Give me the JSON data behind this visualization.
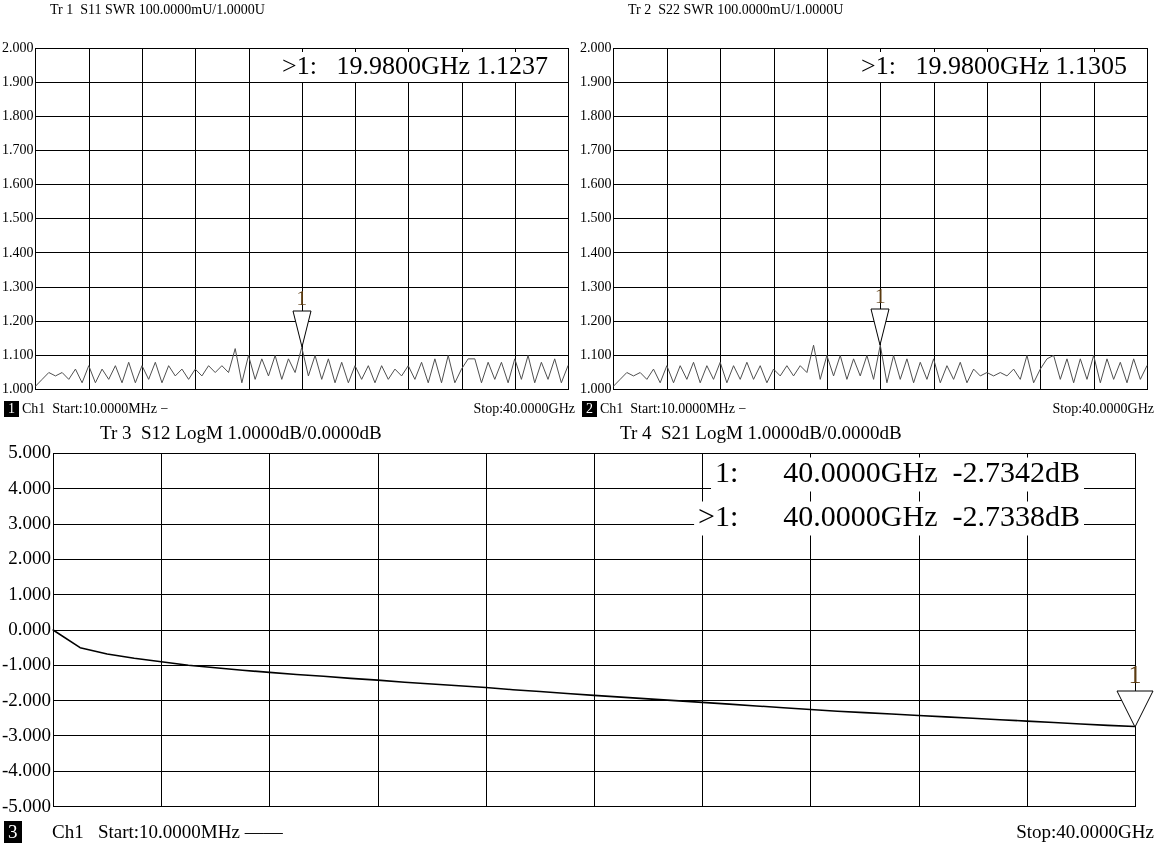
{
  "chart_data": [
    {
      "type": "line",
      "title": "Tr 1  S11 SWR 100.0000mU/1.0000U",
      "ylim": [
        1,
        2
      ],
      "yticks": [
        {
          "value": 1,
          "label": "1.000"
        },
        {
          "value": 1.1,
          "label": "1.100"
        },
        {
          "value": 1.2,
          "label": "1.200"
        },
        {
          "value": 1.3,
          "label": "1.300"
        },
        {
          "value": 1.4,
          "label": "1.400"
        },
        {
          "value": 1.5,
          "label": "1.500"
        },
        {
          "value": 1.6,
          "label": "1.600"
        },
        {
          "value": 1.7,
          "label": "1.700"
        },
        {
          "value": 1.8,
          "label": "1.800"
        },
        {
          "value": 1.9,
          "label": "1.900"
        },
        {
          "value": 2,
          "label": "2.000"
        }
      ],
      "tick_labels": "y",
      "grid": true,
      "marker": "none",
      "line_style": "solid",
      "categories": [
        null,
        null,
        null,
        null,
        null,
        null,
        null,
        null,
        null,
        null,
        null,
        null,
        null,
        null,
        null,
        null,
        null,
        null,
        null,
        null,
        null,
        null,
        null,
        null,
        null,
        null,
        null,
        null,
        null,
        null,
        null,
        null,
        null,
        null,
        null,
        null,
        null,
        null,
        null,
        null,
        null,
        null,
        null,
        null,
        null,
        null,
        null,
        null,
        null,
        null,
        null,
        null,
        null,
        null,
        null,
        null,
        null,
        null,
        null,
        null,
        null,
        null,
        null,
        null,
        null,
        null,
        null,
        null,
        null,
        null,
        null,
        null,
        null,
        null,
        null,
        null,
        null,
        null,
        null,
        null,
        null
      ],
      "series": [
        {
          "color": "#505050",
          "values": [
            1.01,
            1.03,
            1.05,
            1.04,
            1.05,
            1.03,
            1.06,
            1.02,
            1.07,
            1.02,
            1.06,
            1.03,
            1.07,
            1.02,
            1.08,
            1.02,
            1.07,
            1.03,
            1.08,
            1.02,
            1.07,
            1.04,
            1.06,
            1.03,
            1.06,
            1.04,
            1.07,
            1.05,
            1.07,
            1.05,
            1.12,
            1.02,
            1.1,
            1.03,
            1.09,
            1.04,
            1.1,
            1.03,
            1.09,
            1.05,
            1.1237,
            1.04,
            1.1,
            1.03,
            1.09,
            1.02,
            1.08,
            1.02,
            1.07,
            1.03,
            1.07,
            1.02,
            1.07,
            1.03,
            1.06,
            1.04,
            1.07,
            1.03,
            1.08,
            1.02,
            1.09,
            1.02,
            1.1,
            1.02,
            1.06,
            1.09,
            1.09,
            1.02,
            1.08,
            1.03,
            1.08,
            1.02,
            1.09,
            1.03,
            1.1,
            1.02,
            1.08,
            1.03,
            1.09,
            1.02,
            1.07
          ]
        }
      ],
      "annotations": [
        {
          "text": "1",
          "y": 1.1237
        },
        ">1:   19.9800GHz 1.1237",
        "1",
        "Ch1  Start:10.0000MHz −",
        "Stop:40.0000GHz"
      ]
    },
    {
      "type": "line",
      "title": "Tr 2  S22 SWR 100.0000mU/1.0000U",
      "ylim": [
        1,
        2
      ],
      "yticks": [
        {
          "value": 1,
          "label": "1.000"
        },
        {
          "value": 1.1,
          "label": "1.100"
        },
        {
          "value": 1.2,
          "label": "1.200"
        },
        {
          "value": 1.3,
          "label": "1.300"
        },
        {
          "value": 1.4,
          "label": "1.400"
        },
        {
          "value": 1.5,
          "label": "1.500"
        },
        {
          "value": 1.6,
          "label": "1.600"
        },
        {
          "value": 1.7,
          "label": "1.700"
        },
        {
          "value": 1.8,
          "label": "1.800"
        },
        {
          "value": 1.9,
          "label": "1.900"
        },
        {
          "value": 2,
          "label": "2.000"
        }
      ],
      "tick_labels": "y",
      "grid": true,
      "marker": "none",
      "line_style": "solid",
      "categories": [
        null,
        null,
        null,
        null,
        null,
        null,
        null,
        null,
        null,
        null,
        null,
        null,
        null,
        null,
        null,
        null,
        null,
        null,
        null,
        null,
        null,
        null,
        null,
        null,
        null,
        null,
        null,
        null,
        null,
        null,
        null,
        null,
        null,
        null,
        null,
        null,
        null,
        null,
        null,
        null,
        null,
        null,
        null,
        null,
        null,
        null,
        null,
        null,
        null,
        null,
        null,
        null,
        null,
        null,
        null,
        null,
        null,
        null,
        null,
        null,
        null,
        null,
        null,
        null,
        null,
        null,
        null,
        null,
        null,
        null,
        null,
        null,
        null,
        null,
        null,
        null,
        null,
        null,
        null,
        null,
        null
      ],
      "series": [
        {
          "color": "#505050",
          "values": [
            1.01,
            1.03,
            1.05,
            1.04,
            1.05,
            1.03,
            1.06,
            1.02,
            1.07,
            1.02,
            1.07,
            1.03,
            1.08,
            1.02,
            1.07,
            1.03,
            1.08,
            1.02,
            1.07,
            1.03,
            1.08,
            1.03,
            1.07,
            1.02,
            1.06,
            1.04,
            1.07,
            1.04,
            1.07,
            1.05,
            1.13,
            1.03,
            1.1,
            1.04,
            1.1,
            1.03,
            1.09,
            1.04,
            1.1,
            1.03,
            1.1305,
            1.02,
            1.1,
            1.03,
            1.09,
            1.02,
            1.08,
            1.03,
            1.09,
            1.02,
            1.07,
            1.03,
            1.08,
            1.02,
            1.06,
            1.04,
            1.05,
            1.04,
            1.05,
            1.04,
            1.06,
            1.03,
            1.1,
            1.02,
            1.06,
            1.09,
            1.1,
            1.03,
            1.09,
            1.02,
            1.09,
            1.03,
            1.1,
            1.02,
            1.09,
            1.03,
            1.08,
            1.02,
            1.09,
            1.03,
            1.07
          ]
        }
      ],
      "annotations": [
        {
          "text": "1",
          "y": 1.1305
        },
        ">1:   19.9800GHz 1.1305",
        "2",
        "Ch1  Start:10.0000MHz −",
        "Stop:40.0000GHz"
      ]
    },
    {
      "type": "line",
      "title": "Tr 3  S12 LogM 1.0000dB/0.0000dB",
      "subtitle": "Tr 4  S21 LogM 1.0000dB/0.0000dB",
      "ylim": [
        -5,
        5
      ],
      "yticks": [
        {
          "value": -5,
          "label": "-5.000"
        },
        {
          "value": -4,
          "label": "-4.000"
        },
        {
          "value": -3,
          "label": "-3.000"
        },
        {
          "value": -2,
          "label": "-2.000"
        },
        {
          "value": -1,
          "label": "-1.000"
        },
        {
          "value": 0,
          "label": "0.000"
        },
        {
          "value": 1,
          "label": "1.000"
        },
        {
          "value": 2,
          "label": "2.000"
        },
        {
          "value": 3,
          "label": "3.000"
        },
        {
          "value": 4,
          "label": "4.000"
        },
        {
          "value": 5,
          "label": "5.000"
        }
      ],
      "tick_labels": "y",
      "grid": true,
      "marker": "none",
      "line_style": "solid",
      "categories": [
        null,
        null,
        null,
        null,
        null,
        null,
        null,
        null,
        null,
        null,
        null,
        null,
        null,
        null,
        null,
        null,
        null,
        null,
        null,
        null,
        null,
        null,
        null,
        null,
        null,
        null,
        null,
        null,
        null,
        null,
        null,
        null,
        null,
        null,
        null,
        null,
        null,
        null,
        null,
        null,
        null
      ],
      "series": [
        {
          "color": "#000000",
          "values": [
            0,
            -0.5,
            -0.68,
            -0.8,
            -0.9,
            -1,
            -1.07,
            -1.14,
            -1.2,
            -1.26,
            -1.31,
            -1.37,
            -1.42,
            -1.48,
            -1.53,
            -1.58,
            -1.63,
            -1.69,
            -1.74,
            -1.8,
            -1.85,
            -1.9,
            -1.95,
            -2,
            -2.05,
            -2.1,
            -2.15,
            -2.2,
            -2.25,
            -2.3,
            -2.34,
            -2.38,
            -2.42,
            -2.46,
            -2.5,
            -2.54,
            -2.58,
            -2.62,
            -2.66,
            -2.7,
            -2.734
          ]
        }
      ],
      "annotations": [
        {
          "text": "1",
          "y": -2.734
        },
        "1:      40.0000GHz  -2.7342dB",
        ">1:      40.0000GHz  -2.7338dB",
        "3",
        "Ch1   Start:10.0000MHz ——",
        "Stop:40.0000GHz"
      ]
    }
  ]
}
